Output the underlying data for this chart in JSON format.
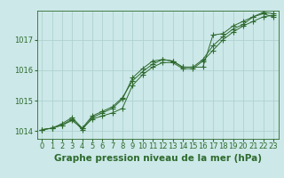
{
  "title": "Graphe pression niveau de la mer (hPa)",
  "xlabel_hours": [
    0,
    1,
    2,
    3,
    4,
    5,
    6,
    7,
    8,
    9,
    10,
    11,
    12,
    13,
    14,
    15,
    16,
    17,
    18,
    19,
    20,
    21,
    22,
    23
  ],
  "line1": [
    1014.05,
    1014.1,
    1014.2,
    1014.4,
    1014.05,
    1014.45,
    1014.6,
    1014.75,
    1015.05,
    1015.75,
    1016.05,
    1016.3,
    1016.35,
    1016.3,
    1016.1,
    1016.1,
    1016.1,
    1017.15,
    1017.2,
    1017.45,
    1017.6,
    1017.75,
    1017.85,
    1017.75
  ],
  "line2": [
    1014.05,
    1014.1,
    1014.2,
    1014.35,
    1014.1,
    1014.4,
    1014.5,
    1014.6,
    1014.75,
    1015.5,
    1015.85,
    1016.1,
    1016.25,
    1016.25,
    1016.05,
    1016.05,
    1016.3,
    1016.65,
    1017.0,
    1017.25,
    1017.45,
    1017.6,
    1017.75,
    1017.8
  ],
  "line3": [
    1014.05,
    1014.1,
    1014.25,
    1014.45,
    1014.1,
    1014.5,
    1014.65,
    1014.8,
    1015.1,
    1015.65,
    1015.95,
    1016.2,
    1016.35,
    1016.3,
    1016.1,
    1016.1,
    1016.35,
    1016.8,
    1017.1,
    1017.35,
    1017.5,
    1017.75,
    1017.9,
    1017.85
  ],
  "line_color": "#2d6a2d",
  "bg_color": "#cce8e8",
  "grid_color": "#aacece",
  "ylim": [
    1013.75,
    1017.95
  ],
  "ylim_display": [
    1014.0,
    1017.0
  ],
  "yticks": [
    1014,
    1015,
    1016,
    1017
  ],
  "marker": "+",
  "marker_size": 4.0,
  "linewidth": 0.7,
  "title_fontsize": 7.5,
  "tick_fontsize": 6.0
}
